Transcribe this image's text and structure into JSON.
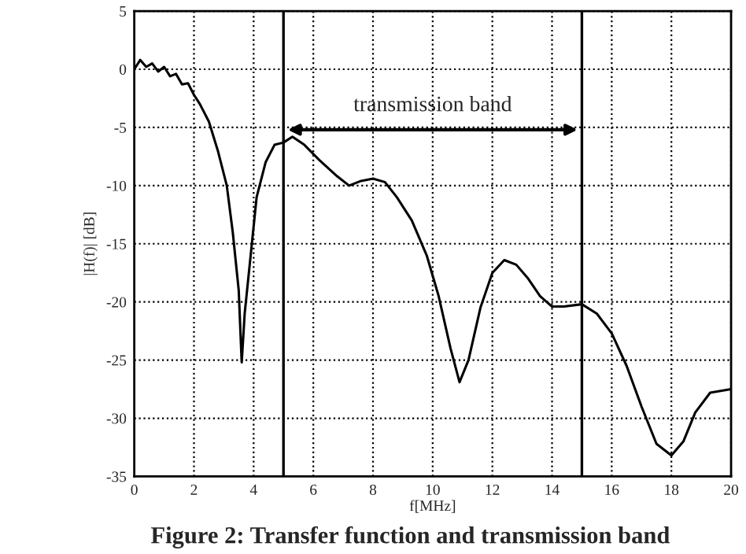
{
  "chart_data": {
    "type": "line",
    "xlabel": "f[MHz]",
    "ylabel": "|H(f)| [dB]",
    "x": [
      0,
      0.2,
      0.4,
      0.6,
      0.8,
      1.0,
      1.2,
      1.4,
      1.6,
      1.8,
      2.0,
      2.2,
      2.5,
      2.8,
      3.1,
      3.3,
      3.5,
      3.6,
      3.7,
      3.9,
      4.1,
      4.4,
      4.7,
      5.0,
      5.3,
      5.7,
      6.2,
      6.8,
      7.2,
      7.6,
      8.0,
      8.4,
      8.8,
      9.3,
      9.8,
      10.2,
      10.6,
      10.9,
      11.2,
      11.6,
      12.0,
      12.4,
      12.8,
      13.2,
      13.6,
      14.0,
      14.4,
      15.0,
      15.5,
      16.0,
      16.5,
      17.0,
      17.5,
      18.0,
      18.4,
      18.8,
      19.3,
      20
    ],
    "series": [
      {
        "color": "#000000",
        "values": [
          0,
          0.8,
          0.2,
          0.5,
          -0.2,
          0.2,
          -0.6,
          -0.4,
          -1.3,
          -1.2,
          -2.2,
          -3,
          -4.5,
          -7,
          -10,
          -14,
          -19,
          -25.2,
          -21,
          -16,
          -11,
          -8,
          -6.5,
          -6.3,
          -5.8,
          -6.5,
          -7.8,
          -9.2,
          -10.0,
          -9.6,
          -9.4,
          -9.7,
          -11,
          -13,
          -16,
          -19.5,
          -24,
          -26.9,
          -25,
          -20.5,
          -17.5,
          -16.4,
          -16.8,
          -18,
          -19.5,
          -20.4,
          -20.4,
          -20.2,
          -21,
          -22.7,
          -25.5,
          -29,
          -32.2,
          -33.2,
          -32,
          -29.5,
          -27.8,
          -27.5
        ]
      }
    ],
    "xlim": [
      0,
      20
    ],
    "xticks": [
      0,
      2,
      4,
      6,
      8,
      10,
      12,
      14,
      16,
      18,
      20
    ],
    "ylim": [
      -35,
      5
    ],
    "yticks": [
      -35,
      -30,
      -25,
      -20,
      -15,
      -10,
      -5,
      0,
      5
    ],
    "grid": true,
    "marker": "none",
    "line_style": "solid",
    "ref_lines": [
      {
        "axis": "x",
        "value": 5,
        "color": "#000000"
      },
      {
        "axis": "x",
        "value": 15,
        "color": "#000000"
      }
    ],
    "annotations": [
      "transmission band",
      "Figure 2: Transfer function and transmission band"
    ]
  }
}
